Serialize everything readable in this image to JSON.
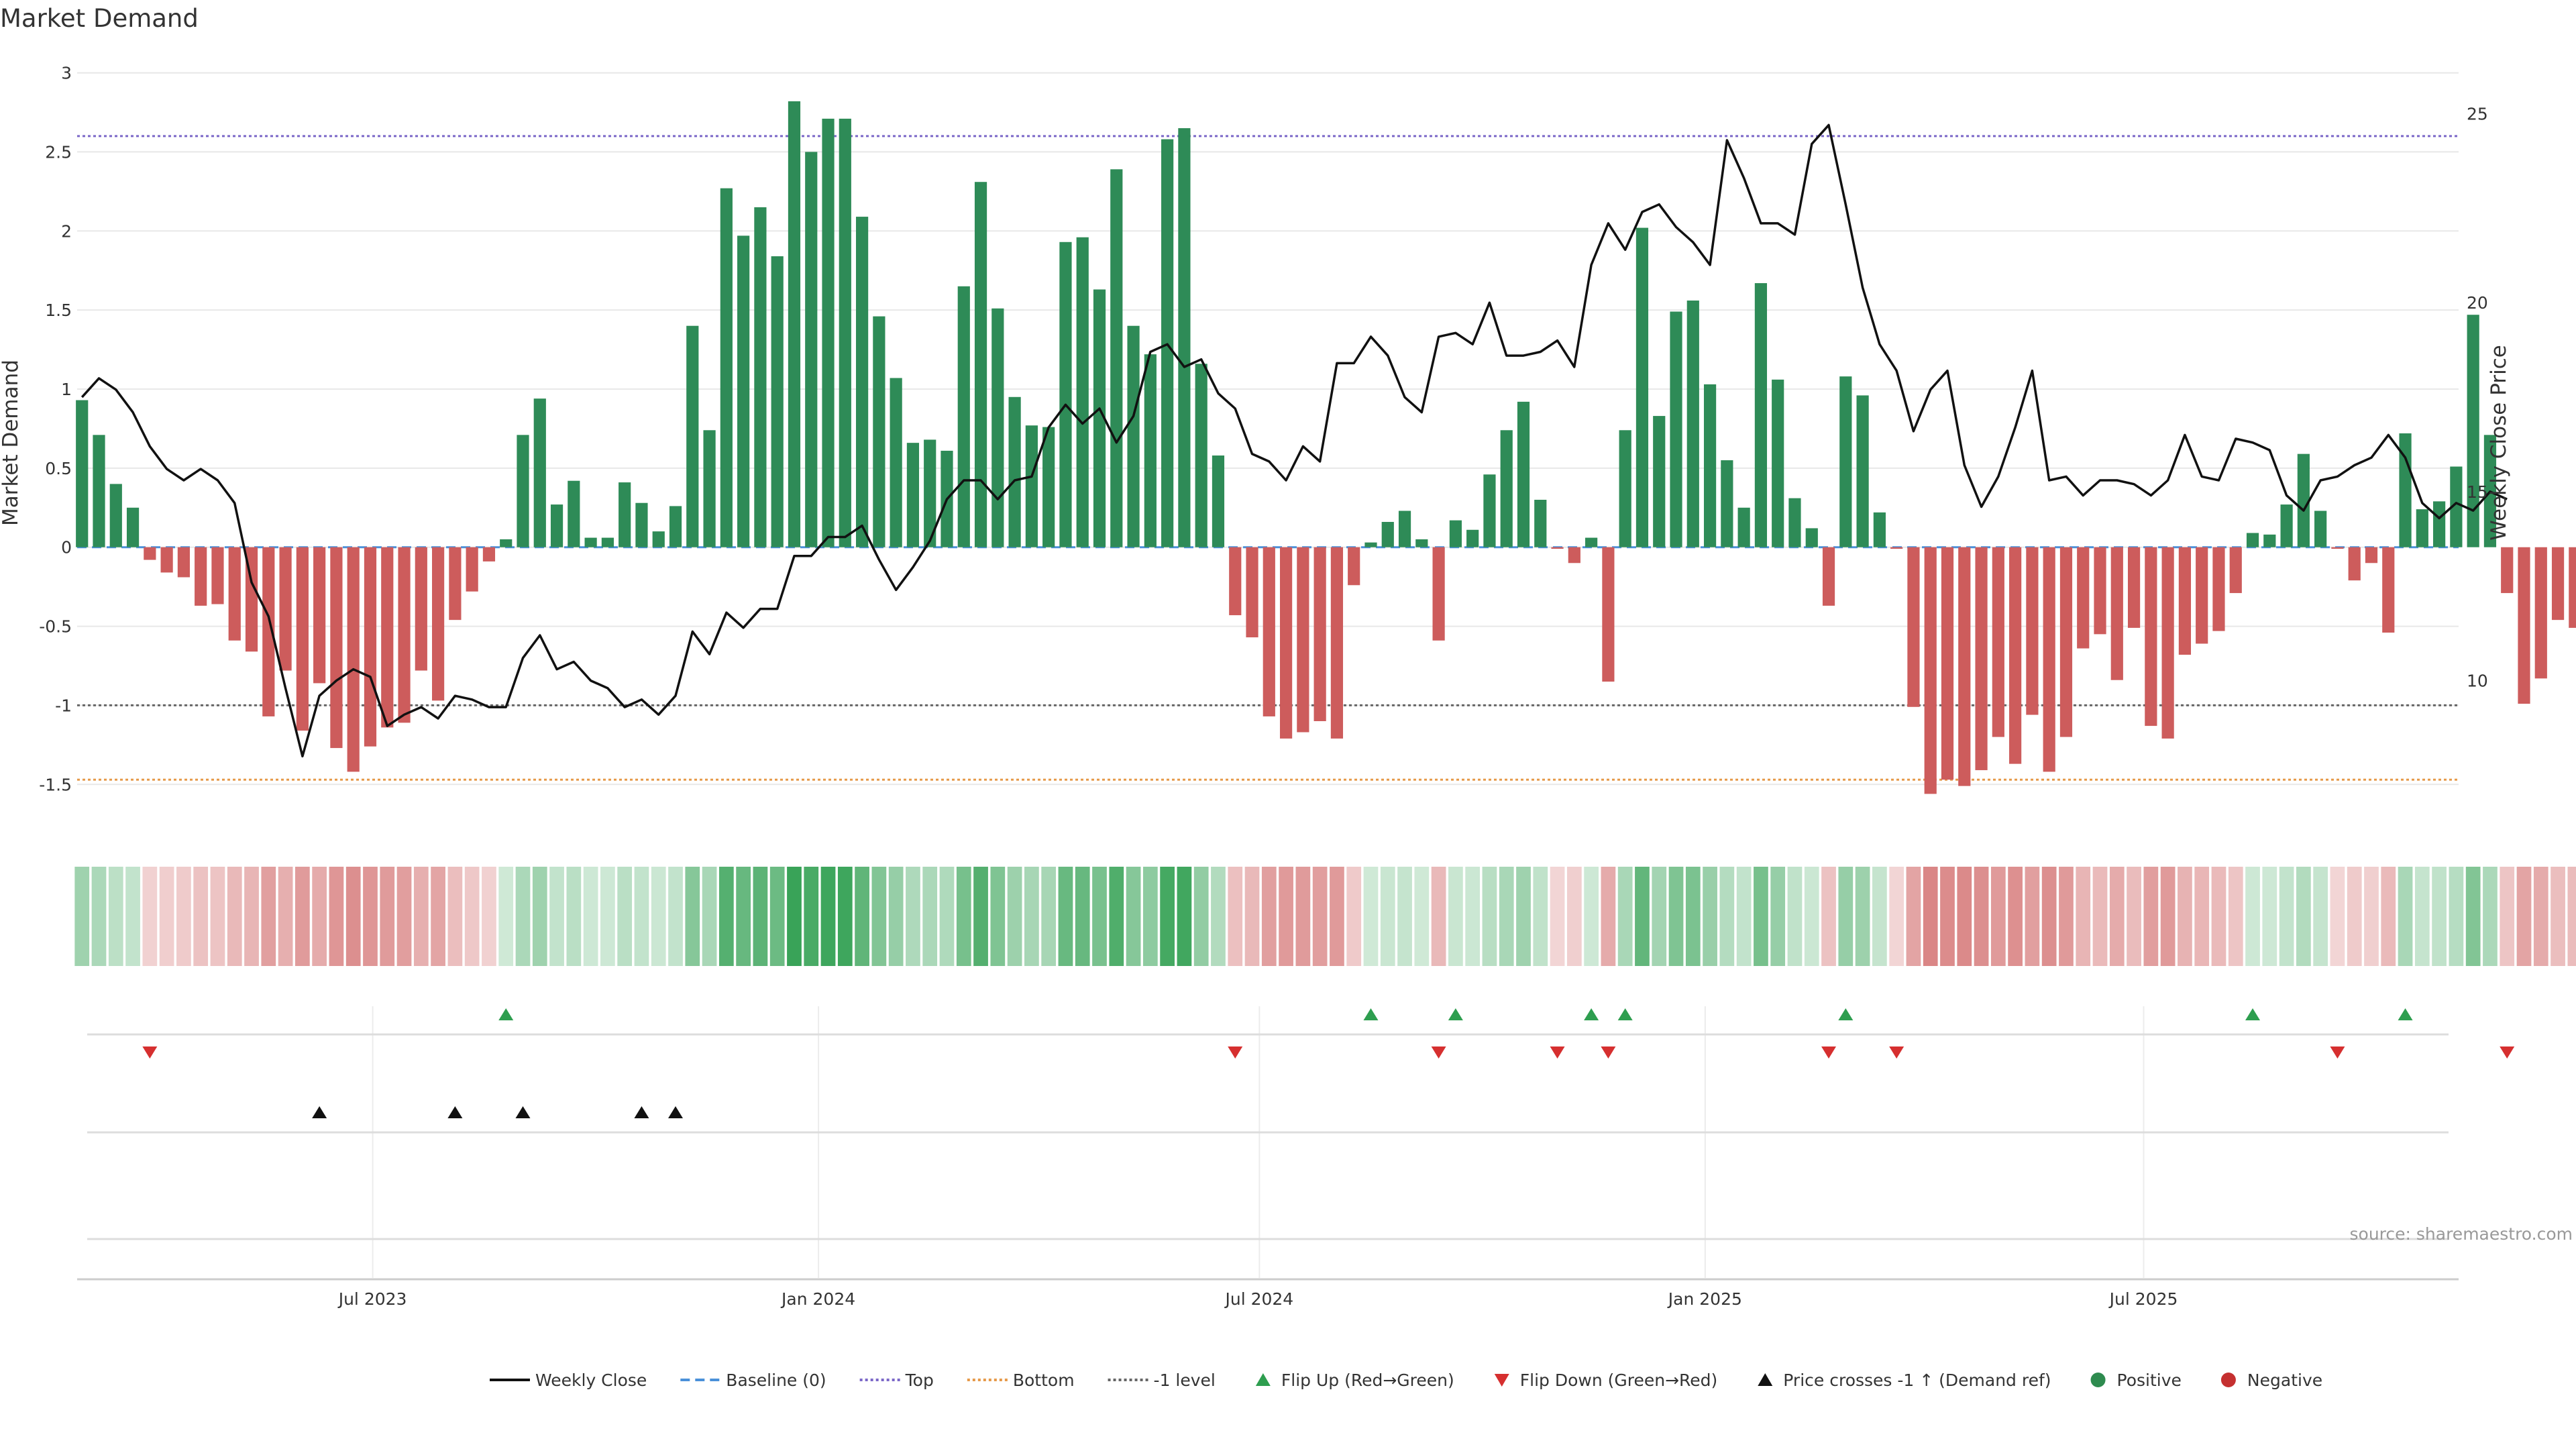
{
  "chart_data": {
    "type": "bar",
    "title": "Market Demand",
    "ylabel": "Market Demand",
    "y2label": "Weekly Close Price",
    "source": "source: sharemaestro.com",
    "ylim": [
      -1.8,
      3.1
    ],
    "y_ticks": [
      3,
      2.5,
      2,
      1.5,
      1,
      0.5,
      0,
      -0.5,
      -1,
      -1.5
    ],
    "y2lim": [
      6.0,
      26.5
    ],
    "y2_ticks": [
      25,
      20,
      15,
      10
    ],
    "x_range": [
      "2023-03-01",
      "2025-11-08"
    ],
    "x_ticks": [
      {
        "date": "2023-07-01",
        "label": "Jul 2023"
      },
      {
        "date": "2024-01-01",
        "label": "Jan 2024"
      },
      {
        "date": "2024-07-01",
        "label": "Jul 2024"
      },
      {
        "date": "2025-01-01",
        "label": "Jan 2025"
      },
      {
        "date": "2025-07-01",
        "label": "Jul 2025"
      }
    ],
    "start_week": "2023-03-03",
    "reference_lines": [
      {
        "name": "Top",
        "value": 2.6,
        "color": "#7b68c8",
        "dash": "4,4"
      },
      {
        "name": "Bottom",
        "value": -1.47,
        "color": "#e69a4a",
        "dash": "4,4"
      },
      {
        "name": "-1 level",
        "value": -1.0,
        "color": "#666666",
        "dash": "4,4"
      },
      {
        "name": "Baseline (0)",
        "value": 0,
        "color": "#4a90d9",
        "dash": "14,8"
      }
    ],
    "demand": [
      0.93,
      0.71,
      0.4,
      0.25,
      -0.08,
      -0.16,
      -0.19,
      -0.37,
      -0.36,
      -0.59,
      -0.66,
      -1.07,
      -0.78,
      -1.16,
      -0.86,
      -1.27,
      -1.42,
      -1.26,
      -1.14,
      -1.11,
      -0.78,
      -0.97,
      -0.46,
      -0.28,
      -0.09,
      0.05,
      0.71,
      0.94,
      0.27,
      0.42,
      0.06,
      0.06,
      0.41,
      0.28,
      0.1,
      0.26,
      1.4,
      0.74,
      2.27,
      1.97,
      2.15,
      1.84,
      2.82,
      2.5,
      2.71,
      2.71,
      2.09,
      1.46,
      1.07,
      0.66,
      0.68,
      0.61,
      1.65,
      2.31,
      1.51,
      0.95,
      0.77,
      0.76,
      1.93,
      1.96,
      1.63,
      2.39,
      1.4,
      1.22,
      2.58,
      2.65,
      1.16,
      0.58,
      -0.43,
      -0.57,
      -1.07,
      -1.21,
      -1.17,
      -1.1,
      -1.21,
      -0.24,
      0.03,
      0.16,
      0.23,
      0.05,
      -0.59,
      0.17,
      0.11,
      0.46,
      0.74,
      0.92,
      0.3,
      -0.01,
      -0.1,
      0.06,
      -0.85,
      0.74,
      2.02,
      0.83,
      1.49,
      1.56,
      1.03,
      0.55,
      0.25,
      1.67,
      1.06,
      0.31,
      0.12,
      -0.37,
      1.08,
      0.96,
      0.22,
      -0.01,
      -1.01,
      -1.56,
      -1.47,
      -1.51,
      -1.41,
      -1.2,
      -1.37,
      -1.06,
      -1.42,
      -1.2,
      -0.64,
      -0.55,
      -0.84,
      -0.51,
      -1.13,
      -1.21,
      -0.68,
      -0.61,
      -0.53,
      -0.29,
      0.09,
      0.08,
      0.27,
      0.59,
      0.23,
      -0.01,
      -0.21,
      -0.1,
      -0.54,
      0.72,
      0.24,
      0.29,
      0.51,
      1.47,
      0.71,
      -0.29,
      -0.99,
      -0.83,
      -0.46,
      -0.51
    ],
    "weekly_close": [
      17.5,
      18.0,
      17.7,
      17.1,
      16.2,
      15.6,
      15.3,
      15.6,
      15.3,
      14.7,
      12.6,
      11.7,
      9.8,
      8.0,
      9.6,
      10.0,
      10.3,
      10.1,
      8.8,
      9.1,
      9.3,
      9.0,
      9.6,
      9.5,
      9.3,
      9.3,
      10.6,
      11.2,
      10.3,
      10.5,
      10.0,
      9.8,
      9.3,
      9.5,
      9.1,
      9.6,
      11.3,
      10.7,
      11.8,
      11.4,
      11.9,
      11.9,
      13.3,
      13.3,
      13.8,
      13.8,
      14.1,
      13.2,
      12.4,
      13.0,
      13.7,
      14.8,
      15.3,
      15.3,
      14.8,
      15.3,
      15.4,
      16.7,
      17.3,
      16.8,
      17.2,
      16.3,
      17.0,
      18.7,
      18.9,
      18.3,
      18.5,
      17.6,
      17.2,
      16.0,
      15.8,
      15.3,
      16.2,
      15.8,
      18.4,
      18.4,
      19.1,
      18.6,
      17.5,
      17.1,
      19.1,
      19.2,
      18.9,
      20.0,
      18.6,
      18.6,
      18.7,
      19.0,
      18.3,
      21.0,
      22.1,
      21.4,
      22.4,
      22.6,
      22.0,
      21.6,
      21.0,
      24.3,
      23.3,
      22.1,
      22.1,
      21.8,
      24.2,
      24.7,
      22.6,
      20.4,
      18.9,
      18.2,
      16.6,
      17.7,
      18.2,
      15.7,
      14.6,
      15.4,
      16.7,
      18.2,
      15.3,
      15.4,
      14.9,
      15.3,
      15.3,
      15.2,
      14.9,
      15.3,
      16.5,
      15.4,
      15.3,
      16.4,
      16.3,
      16.1,
      14.9,
      14.5,
      15.3,
      15.4,
      15.7,
      15.9,
      16.5,
      15.9,
      14.7,
      14.3,
      14.7,
      14.5,
      15.0,
      14.8
    ]
  },
  "legend": [
    {
      "label": "Weekly Close",
      "marker": "solid-line",
      "color": "#111111"
    },
    {
      "label": "Baseline (0)",
      "marker": "dashed-line",
      "color": "#4a90d9"
    },
    {
      "label": "Top",
      "marker": "dotted-line",
      "color": "#7b68c8"
    },
    {
      "label": "Bottom",
      "marker": "dotted-line",
      "color": "#e69a4a"
    },
    {
      "label": "-1 level",
      "marker": "dotted-line",
      "color": "#666666"
    },
    {
      "label": "Flip Up (Red→Green)",
      "marker": "triangle-up",
      "color": "#2e9e4f"
    },
    {
      "label": "Flip Down (Green→Red)",
      "marker": "triangle-down",
      "color": "#d62f2f"
    },
    {
      "label": "Price crosses -1 ↑ (Demand ref)",
      "marker": "triangle-up",
      "color": "#111111"
    },
    {
      "label": "Positive",
      "marker": "circle",
      "color": "#2e8b4f"
    },
    {
      "label": "Negative",
      "marker": "circle",
      "color": "#c53030"
    }
  ],
  "colors": {
    "positive_bar": "#2e8b57",
    "negative_bar": "#cd5c5c",
    "strip_positive": "#2e9e4f",
    "strip_negative": "#c44040",
    "flip_up": "#2e9e4f",
    "flip_down": "#d62f2f",
    "price_cross": "#111111",
    "price_line": "#111111",
    "grid": "#e8e8e8"
  }
}
